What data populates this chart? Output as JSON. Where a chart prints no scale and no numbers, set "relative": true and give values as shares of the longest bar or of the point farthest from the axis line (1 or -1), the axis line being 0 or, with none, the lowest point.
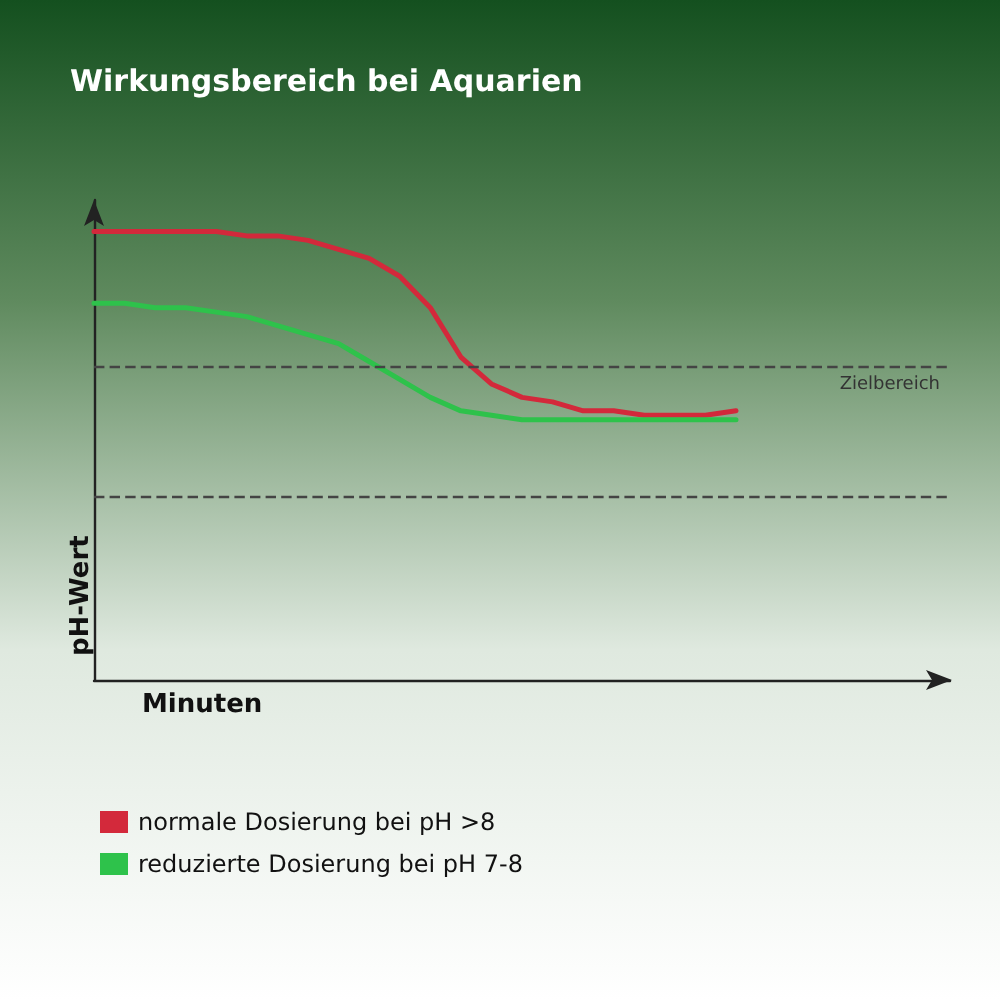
{
  "chart_data": {
    "type": "line",
    "title": "Wirkungsbereich bei Aquarien",
    "xlabel": "Minuten",
    "ylabel": "pH-Wert",
    "relative": true,
    "categories": [
      null,
      null,
      null,
      null,
      null,
      null,
      null,
      null,
      null,
      null,
      null,
      null,
      null,
      null,
      null,
      null,
      null,
      null,
      null,
      null,
      null,
      null,
      null,
      null,
      null,
      null,
      null,
      null,
      null
    ],
    "series": [
      {
        "name": "normale Dosierung bei pH >8",
        "color": "#d3293b",
        "values": [
          1,
          1,
          1,
          1,
          1,
          0.99,
          0.99,
          0.98,
          0.96,
          0.94,
          0.9,
          0.83,
          0.72,
          0.66,
          0.63,
          0.62,
          0.6,
          0.6,
          0.59,
          0.59,
          0.59,
          0.6,
          null,
          null,
          null,
          null,
          null,
          null,
          null
        ]
      },
      {
        "name": "reduzierte Dosierung bei pH 7-8",
        "color": "#2ec24b",
        "values": [
          0.84,
          0.84,
          0.83,
          0.83,
          0.82,
          0.81,
          0.79,
          0.77,
          0.75,
          0.71,
          0.67,
          0.63,
          0.6,
          0.59,
          0.58,
          0.58,
          0.58,
          0.58,
          0.58,
          0.58,
          0.58,
          0.58,
          null,
          null,
          null,
          null,
          null,
          null,
          null
        ]
      }
    ],
    "ref_lines": [
      {
        "axis": "y",
        "value": 0.7,
        "label": "Zielbereich",
        "line_style": "dashed",
        "color": "#444444"
      },
      {
        "axis": "y",
        "value": 0.41,
        "label": null,
        "line_style": "dashed",
        "color": "#444444"
      }
    ],
    "legend": "bottom left",
    "grid": false,
    "marker": "none",
    "line_style": "solid"
  }
}
